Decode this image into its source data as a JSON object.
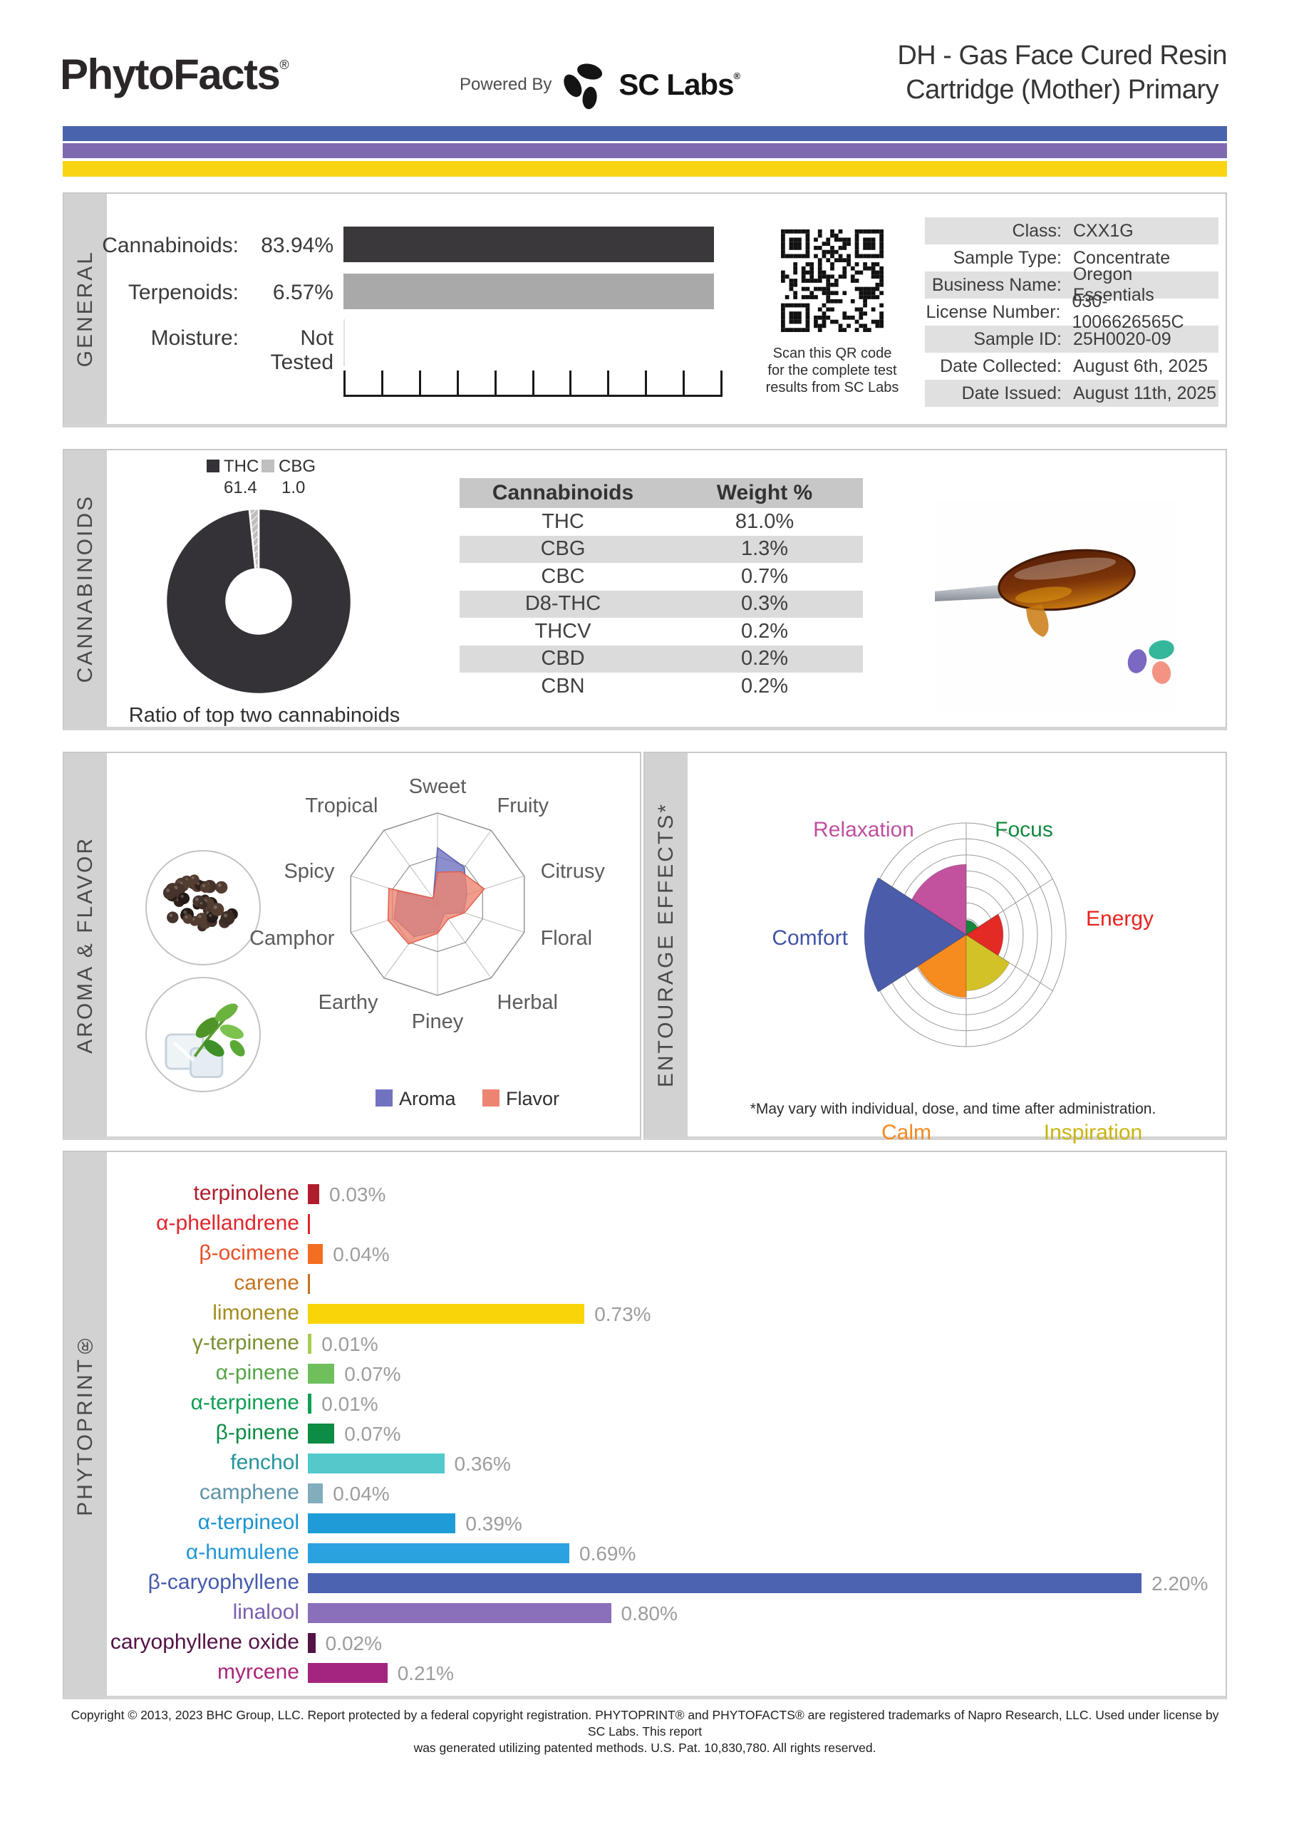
{
  "header": {
    "brand": "PhytoFacts",
    "brand_reg": "®",
    "powered_by": "Powered By",
    "lab_name": "SC Labs",
    "lab_reg": "®",
    "title_line1": "DH - Gas Face Cured Resin",
    "title_line2": "Cartridge (Mother) Primary",
    "bands": {
      "blue": "#4a63ad",
      "purple": "#7f6ab0",
      "yellow": "#f8d413"
    }
  },
  "general": {
    "section_label": "GENERAL",
    "rows": [
      {
        "label": "Cannabinoids:",
        "value": "83.94%",
        "bar_color": "#3a383b"
      },
      {
        "label": "Terpenoids:",
        "value": "6.57%",
        "bar_color": "#a9a9a9"
      },
      {
        "label": "Moisture:",
        "value": "Not Tested",
        "bar_color": null
      }
    ],
    "qr_caption": [
      "Scan this QR code",
      "for the complete test",
      "results from SC Labs"
    ],
    "info": [
      {
        "label": "Class:",
        "value": "CXX1G",
        "shaded": true
      },
      {
        "label": "Sample Type:",
        "value": "Concentrate",
        "shaded": false
      },
      {
        "label": "Business Name:",
        "value": "Oregon Essentials",
        "shaded": true
      },
      {
        "label": "License Number:",
        "value": "030-1006626565C",
        "shaded": false
      },
      {
        "label": "Sample ID:",
        "value": "25H0020-09",
        "shaded": true
      },
      {
        "label": "Date Collected:",
        "value": "August 6th, 2025",
        "shaded": false
      },
      {
        "label": "Date Issued:",
        "value": "August 11th, 2025",
        "shaded": true
      }
    ]
  },
  "cannabinoids": {
    "section_label": "CANNABINOIDS",
    "legend": [
      {
        "label": "THC",
        "value": "61.4",
        "color": "#343236"
      },
      {
        "label": "CBG",
        "value": "1.0",
        "color": "#bfbfbf"
      }
    ]
  },
  "aroma_flavor": {
    "section_label": "AROMA & FLAVOR",
    "images": [
      "peppercorns",
      "mint-and-ice"
    ]
  },
  "entourage": {
    "section_label": "ENTOURAGE EFFECTS*",
    "footnote": "*May vary with individual, dose, and time after administration."
  },
  "phytoprint": {
    "section_label": "PHYTOPRINT®"
  },
  "footer": {
    "line1": "Copyright © 2013, 2023 BHC Group, LLC. Report protected by a federal copyright registration. PHYTOPRINT® and PHYTOFACTS® are registered trademarks of Napro Research, LLC. Used under license by SC Labs. This report",
    "line2": "was generated utilizing patented methods. U.S. Pat. 10,830,780. All rights reserved."
  },
  "chart_data": [
    {
      "id": "cannabinoid_ratio_donut",
      "type": "pie",
      "title": "Ratio of top two cannabinoids",
      "labels": [
        "THC",
        "CBG"
      ],
      "values": [
        61.4,
        1.0
      ],
      "colors": [
        "#343236",
        "#bfbfbf"
      ],
      "hole": 0.35,
      "note": "CBG slice hatched, positioned just left of 12 o'clock"
    },
    {
      "id": "cannabinoid_table",
      "type": "table",
      "headers": [
        "Cannabinoids",
        "Weight %"
      ],
      "rows": [
        [
          "THC",
          "81.0%"
        ],
        [
          "CBG",
          "1.3%"
        ],
        [
          "CBC",
          "0.7%"
        ],
        [
          "D8-THC",
          "0.3%"
        ],
        [
          "THCV",
          "0.2%"
        ],
        [
          "CBD",
          "0.2%"
        ],
        [
          "CBN",
          "0.2%"
        ]
      ]
    },
    {
      "id": "aroma_flavor_radar",
      "type": "radar",
      "axes": [
        "Sweet",
        "Fruity",
        "Citrusy",
        "Floral",
        "Herbal",
        "Piney",
        "Earthy",
        "Camphor",
        "Spicy",
        "Tropical"
      ],
      "range": [
        0,
        1
      ],
      "grid": "decagon outer ring plus inner ring at 0.52",
      "series": [
        {
          "name": "Aroma",
          "color": "#7173c1",
          "stroke": "#5c5eb0",
          "values": [
            0.62,
            0.5,
            0.34,
            0.3,
            0.13,
            0.3,
            0.44,
            0.5,
            0.46,
            0.08
          ]
        },
        {
          "name": "Flavor",
          "color": "#ed8471",
          "stroke": "#e05f4b",
          "values": [
            0.35,
            0.44,
            0.54,
            0.31,
            0.2,
            0.32,
            0.54,
            0.57,
            0.56,
            0.08
          ]
        }
      ]
    },
    {
      "id": "entourage_polar",
      "type": "polar-sector",
      "range": [
        0,
        1
      ],
      "rings": 7,
      "categories": [
        {
          "label": "Focus",
          "value": 0.13,
          "color": "#16863d",
          "label_color": "#128a3f"
        },
        {
          "label": "Energy",
          "value": 0.37,
          "color": "#e32a24",
          "label_color": "#e8231f"
        },
        {
          "label": "Inspiration",
          "value": 0.5,
          "color": "#d3c128",
          "label_color": "#c9b40e"
        },
        {
          "label": "Calm",
          "value": 0.56,
          "color": "#f68b1f",
          "label_color": "#f6891f"
        },
        {
          "label": "Comfort",
          "value": 1.02,
          "color": "#4a5caa",
          "label_color": "#4053a6"
        },
        {
          "label": "Relaxation",
          "value": 0.63,
          "color": "#c2519e",
          "label_color": "#bf4f9e"
        }
      ]
    },
    {
      "id": "phytoprint_bars",
      "type": "bar",
      "orientation": "horizontal",
      "unit": "%",
      "xmax": 2.2,
      "items": [
        {
          "name": "terpinolene",
          "value": 0.03,
          "display": "0.03%",
          "label_color": "#ae1e2c",
          "bar_color": "#ae1e2c"
        },
        {
          "name": "α-phellandrene",
          "value": 0.005,
          "display": "",
          "label_color": "#e0262c",
          "bar_color": "#e0262c"
        },
        {
          "name": "β-ocimene",
          "value": 0.04,
          "display": "0.04%",
          "label_color": "#e84e24",
          "bar_color": "#f26e21"
        },
        {
          "name": "carene",
          "value": 0.005,
          "display": "",
          "label_color": "#c4731f",
          "bar_color": "#c4731f"
        },
        {
          "name": "limonene",
          "value": 0.73,
          "display": "0.73%",
          "label_color": "#a38c1b",
          "bar_color": "#f9d408"
        },
        {
          "name": "γ-terpinene",
          "value": 0.01,
          "display": "0.01%",
          "label_color": "#7a9032",
          "bar_color": "#a9cd4d"
        },
        {
          "name": "α-pinene",
          "value": 0.07,
          "display": "0.07%",
          "label_color": "#55a546",
          "bar_color": "#6fc05d"
        },
        {
          "name": "α-terpinene",
          "value": 0.01,
          "display": "0.01%",
          "label_color": "#0d9f54",
          "bar_color": "#0d9f54"
        },
        {
          "name": "β-pinene",
          "value": 0.07,
          "display": "0.07%",
          "label_color": "#0c8c45",
          "bar_color": "#0c8c45"
        },
        {
          "name": "fenchol",
          "value": 0.36,
          "display": "0.36%",
          "label_color": "#23949c",
          "bar_color": "#54c9cb"
        },
        {
          "name": "camphene",
          "value": 0.04,
          "display": "0.04%",
          "label_color": "#5c93a8",
          "bar_color": "#82adbc"
        },
        {
          "name": "α-terpineol",
          "value": 0.39,
          "display": "0.39%",
          "label_color": "#1b93cf",
          "bar_color": "#1f9cd8"
        },
        {
          "name": "α-humulene",
          "value": 0.69,
          "display": "0.69%",
          "label_color": "#2196d6",
          "bar_color": "#2ba2e0"
        },
        {
          "name": "β-caryophyllene",
          "value": 2.2,
          "display": "2.20%",
          "label_color": "#4559ad",
          "bar_color": "#4c63b2"
        },
        {
          "name": "linalool",
          "value": 0.8,
          "display": "0.80%",
          "label_color": "#7a5fae",
          "bar_color": "#8a6fba"
        },
        {
          "name": "caryophyllene oxide",
          "value": 0.02,
          "display": "0.02%",
          "label_color": "#531345",
          "bar_color": "#531345"
        },
        {
          "name": "myrcene",
          "value": 0.21,
          "display": "0.21%",
          "label_color": "#ab2477",
          "bar_color": "#a42580"
        }
      ]
    }
  ]
}
